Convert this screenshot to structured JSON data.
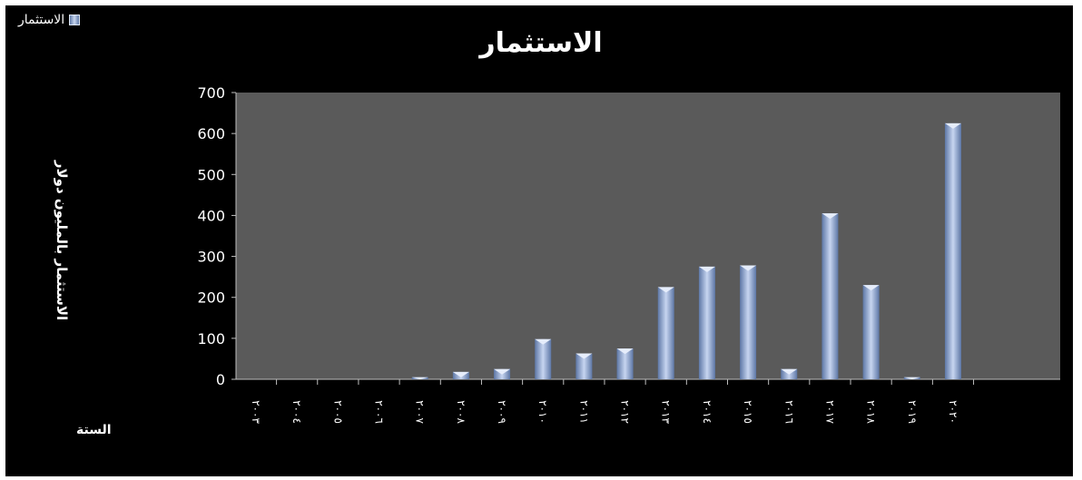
{
  "legend": {
    "label": "الاستثمار",
    "color": "#9fb4dd"
  },
  "chart_data": {
    "type": "bar",
    "title": "الاستثمار",
    "ylabel": "الاستثمار بالمليون دولار",
    "xlabel": "الستة",
    "ylim": [
      0,
      700
    ],
    "yticks": [
      0,
      100,
      200,
      300,
      400,
      500,
      600,
      700
    ],
    "grid": false,
    "legend_position": "top-left",
    "categories": [
      "٢٠٠٣",
      "٢٠٠٤",
      "٢٠٠٥",
      "٢٠٠٦",
      "٢٠٠٧",
      "٢٠٠٨",
      "٢٠٠٩",
      "٢٠١٠",
      "٢٠١١",
      "٢٠١٢",
      "٢٠١٣",
      "٢٠١٤",
      "٢٠١٥",
      "٢٠١٦",
      "٢٠١٧",
      "٢٠١٨",
      "٢٠١٩",
      "٢٠٢٠"
    ],
    "values": [
      0,
      0,
      0,
      0,
      5,
      18,
      25,
      98,
      63,
      75,
      225,
      275,
      278,
      25,
      405,
      230,
      5,
      625
    ],
    "series": [
      {
        "name": "الاستثمار"
      }
    ]
  }
}
